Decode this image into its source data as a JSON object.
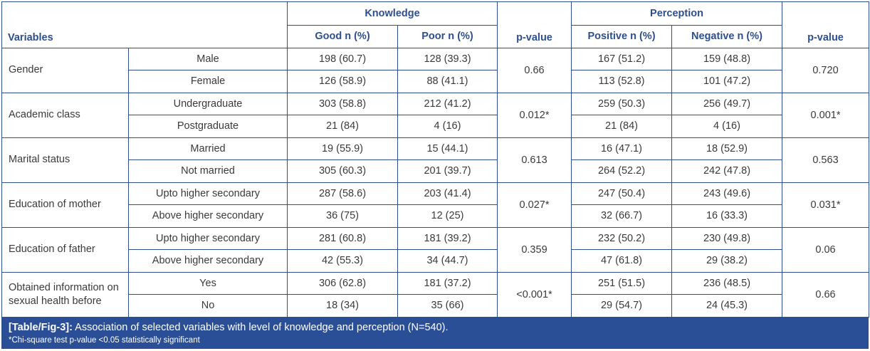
{
  "header": {
    "variables": "Variables",
    "knowledge": "Knowledge",
    "perception": "Perception",
    "good": "Good n (%)",
    "poor": "Poor n (%)",
    "p_value_k": "p-value",
    "positive": "Positive n (%)",
    "negative": "Negative n (%)",
    "p_value_p": "p-value"
  },
  "groups": [
    {
      "variable": "Gender",
      "p_k": "0.66",
      "p_p": "0.720",
      "rows": [
        {
          "sub": "Male",
          "good": "198 (60.7)",
          "poor": "128 (39.3)",
          "pos": "167 (51.2)",
          "neg": "159 (48.8)"
        },
        {
          "sub": "Female",
          "good": "126 (58.9)",
          "poor": "88 (41.1)",
          "pos": "113 (52.8)",
          "neg": "101 (47.2)"
        }
      ]
    },
    {
      "variable": "Academic class",
      "p_k": "0.012*",
      "p_p": "0.001*",
      "rows": [
        {
          "sub": "Undergraduate",
          "good": "303 (58.8)",
          "poor": "212 (41.2)",
          "pos": "259 (50.3)",
          "neg": "256 (49.7)"
        },
        {
          "sub": "Postgraduate",
          "good": "21 (84)",
          "poor": "4 (16)",
          "pos": "21 (84)",
          "neg": "4 (16)"
        }
      ]
    },
    {
      "variable": "Marital status",
      "p_k": "0.613",
      "p_p": "0.563",
      "rows": [
        {
          "sub": "Married",
          "good": "19 (55.9)",
          "poor": "15 (44.1)",
          "pos": "16 (47.1)",
          "neg": "18 (52.9)"
        },
        {
          "sub": "Not married",
          "good": "305 (60.3)",
          "poor": "201 (39.7)",
          "pos": "264 (52.2)",
          "neg": "242 (47.8)"
        }
      ]
    },
    {
      "variable": "Education of mother",
      "p_k": "0.027*",
      "p_p": "0.031*",
      "rows": [
        {
          "sub": "Upto higher secondary",
          "good": "287 (58.6)",
          "poor": "203 (41.4)",
          "pos": "247 (50.4)",
          "neg": "243 (49.6)"
        },
        {
          "sub": "Above higher secondary",
          "good": "36 (75)",
          "poor": "12 (25)",
          "pos": "32 (66.7)",
          "neg": "16 (33.3)"
        }
      ]
    },
    {
      "variable": "Education of father",
      "p_k": "0.359",
      "p_p": "0.06",
      "rows": [
        {
          "sub": "Upto higher secondary",
          "good": "281 (60.8)",
          "poor": "181 (39.2)",
          "pos": "232 (50.2)",
          "neg": "230 (49.8)"
        },
        {
          "sub": "Above higher secondary",
          "good": "42 (55.3)",
          "poor": "34 (44.7)",
          "pos": "47 (61.8)",
          "neg": "29 (38.2)"
        }
      ]
    },
    {
      "variable": "Obtained information on sexual health before",
      "p_k": "<0.001*",
      "p_p": "0.66",
      "rows": [
        {
          "sub": "Yes",
          "good": "306 (62.8)",
          "poor": "181 (37.2)",
          "pos": "251 (51.5)",
          "neg": "236 (48.5)"
        },
        {
          "sub": "No",
          "good": "18 (34)",
          "poor": "35 (66)",
          "pos": "29 (54.7)",
          "neg": "24 (45.3)"
        }
      ]
    }
  ],
  "caption": {
    "label": "[Table/Fig-3]:",
    "text": " Association of selected variables with level of knowledge and perception (N=540).",
    "note": "*Chi-square test p-value <0.05 statistically significant"
  },
  "colors": {
    "accent": "#2b4f97"
  }
}
